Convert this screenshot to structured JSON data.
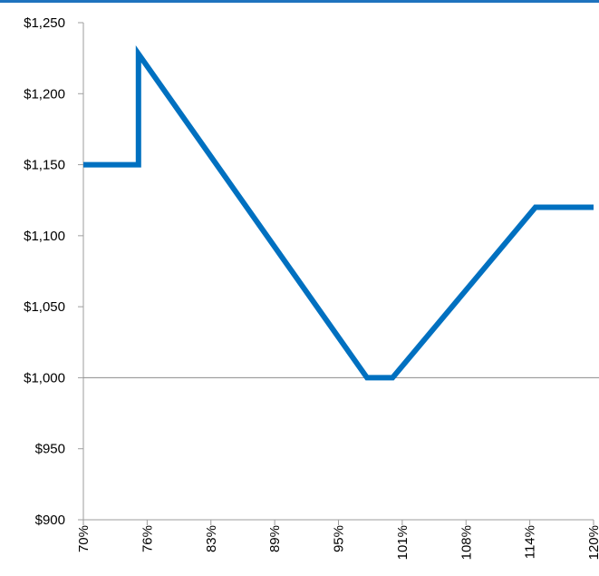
{
  "colors": {
    "accent_rule": "#1E73BE",
    "series_line": "#0070C0",
    "axis": "#9E9E9E",
    "reference_line": "#8C8C8C"
  },
  "chart_data": {
    "type": "line",
    "title": "",
    "xlabel": "",
    "ylabel": "",
    "x_tick_labels": [
      "70%",
      "76%",
      "83%",
      "89%",
      "95%",
      "101%",
      "108%",
      "114%",
      "120%"
    ],
    "y_tick_labels": [
      "$900",
      "$950",
      "$1,000",
      "$1,050",
      "$1,100",
      "$1,150",
      "$1,200",
      "$1,250"
    ],
    "xlim": [
      70,
      120
    ],
    "ylim": [
      900,
      1250
    ],
    "x_ticks": [
      70,
      76.25,
      82.5,
      88.75,
      95,
      101.25,
      107.5,
      113.75,
      120
    ],
    "y_ticks": [
      900,
      950,
      1000,
      1050,
      1100,
      1150,
      1200,
      1250
    ],
    "reference_line_y": 1000,
    "grid": false,
    "series": [
      {
        "x": [
          70,
          75.4,
          75.4,
          97.8,
          100.3,
          114.3,
          120
        ],
        "y": [
          1150,
          1150,
          1228,
          1000,
          1000,
          1120,
          1120
        ]
      }
    ]
  }
}
